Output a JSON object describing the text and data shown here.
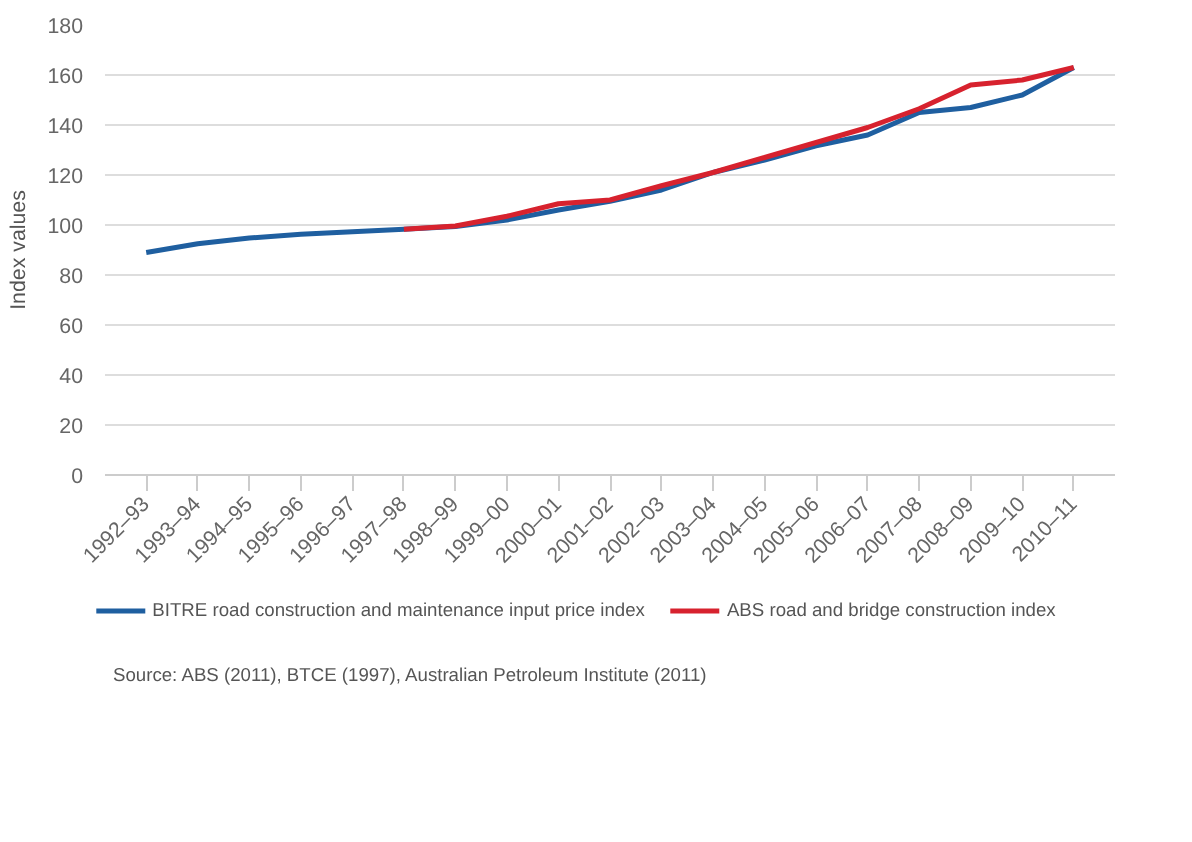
{
  "chart_data": {
    "type": "line",
    "ylabel": "Index values",
    "categories": [
      "1992–93",
      "1993–94",
      "1994–95",
      "1995–96",
      "1996–97",
      "1997–98",
      "1998–99",
      "1999–00",
      "2000–01",
      "2001–02",
      "2002–03",
      "2003–04",
      "2004–05",
      "2005–06",
      "2006–07",
      "2007–08",
      "2008–09",
      "2009–10",
      "2010–11"
    ],
    "series": [
      {
        "name": "BITRE road construction and maintenance input price index",
        "color": "#1f5fa0",
        "values": [
          89,
          92.5,
          94.8,
          96.3,
          97.3,
          98.3,
          99.4,
          102,
          106,
          109.5,
          114,
          121,
          126,
          131.7,
          136,
          145,
          147,
          152,
          163
        ]
      },
      {
        "name": "ABS road and bridge construction index",
        "color": "#d7222e",
        "values": [
          null,
          null,
          null,
          null,
          null,
          98.3,
          99.6,
          103.5,
          108.5,
          110,
          115.7,
          121,
          127,
          133,
          139,
          146.5,
          156,
          158,
          163
        ]
      }
    ],
    "ylim": [
      0,
      180
    ],
    "yticks": [
      0,
      20,
      40,
      60,
      80,
      100,
      120,
      140,
      160,
      180
    ],
    "grid": "y",
    "legend": "bottom",
    "line_style": "solid",
    "marker": "none",
    "annotations": [
      "Source: ABS (2011), BTCE (1997), Australian Petroleum Institute (2011)"
    ]
  }
}
